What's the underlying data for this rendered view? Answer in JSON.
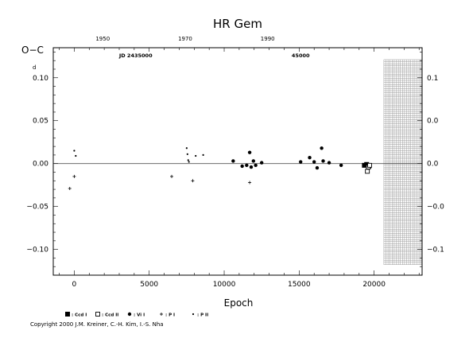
{
  "chart_data": {
    "type": "scatter",
    "title": "HR Gem",
    "ylabel": "O−C",
    "ylabel_unit": "d",
    "xlabel": "Epoch",
    "xlim": [
      -1400,
      23200
    ],
    "ylim": [
      -0.13,
      0.135
    ],
    "x_ticks": [
      {
        "value": 0,
        "label": "0"
      },
      {
        "value": 5000,
        "label": "5000"
      },
      {
        "value": 10000,
        "label": "10000"
      },
      {
        "value": 15000,
        "label": "15000"
      },
      {
        "value": 20000,
        "label": "20000"
      }
    ],
    "y_ticks": [
      {
        "value": 0.1,
        "label": "0.10"
      },
      {
        "value": 0.05,
        "label": "0.05"
      },
      {
        "value": 0.0,
        "label": "0.00"
      },
      {
        "value": -0.05,
        "label": "−0.05"
      },
      {
        "value": -0.1,
        "label": "−0.10"
      }
    ],
    "right_ticks": [
      {
        "value": 0.1,
        "label": "0.1"
      },
      {
        "value": 0.05,
        "label": "0.0"
      },
      {
        "value": 0.0,
        "label": "0.0"
      },
      {
        "value": -0.05,
        "label": "−0.0"
      },
      {
        "value": -0.1,
        "label": "−0.1"
      }
    ],
    "year_ticks": [
      {
        "epoch": 1900,
        "label": "1950"
      },
      {
        "epoch": 7400,
        "label": "1970"
      },
      {
        "epoch": 12900,
        "label": "1990"
      }
    ],
    "jd_labels": [
      {
        "epoch": 4100,
        "label": "JD 2435000"
      },
      {
        "epoch": 15100,
        "label": "45000"
      }
    ],
    "shaded_region": {
      "x_start": 20650,
      "x_end": 23200
    },
    "zero_line": true,
    "legend": [
      {
        "symbol": "filled-square",
        "label": ": Ccd I"
      },
      {
        "symbol": "open-square",
        "label": ": Ccd II"
      },
      {
        "symbol": "filled-circle",
        "label": ": Vi I"
      },
      {
        "symbol": "plus",
        "label": ": P I"
      },
      {
        "symbol": "dot",
        "label": ": P II"
      }
    ],
    "series": [
      {
        "symbol": "filled-square",
        "points": [
          [
            19350,
            -0.002
          ],
          [
            19500,
            -0.001
          ],
          [
            19650,
            -0.003
          ]
        ]
      },
      {
        "symbol": "open-square",
        "points": [
          [
            19550,
            -0.009
          ],
          [
            19620,
            -0.004
          ],
          [
            19700,
            -0.002
          ]
        ]
      },
      {
        "symbol": "filled-circle",
        "points": [
          [
            10600,
            0.003
          ],
          [
            11200,
            -0.003
          ],
          [
            11500,
            -0.002
          ],
          [
            11700,
            0.013
          ],
          [
            11800,
            -0.004
          ],
          [
            11950,
            0.003
          ],
          [
            12100,
            -0.002
          ],
          [
            12500,
            0.001
          ],
          [
            15100,
            0.002
          ],
          [
            15700,
            0.007
          ],
          [
            16000,
            0.002
          ],
          [
            16200,
            -0.005
          ],
          [
            16500,
            0.018
          ],
          [
            16600,
            0.003
          ],
          [
            17000,
            0.001
          ],
          [
            17800,
            -0.002
          ]
        ]
      },
      {
        "symbol": "plus",
        "points": [
          [
            -300,
            -0.029
          ],
          [
            0,
            -0.015
          ],
          [
            6500,
            -0.015
          ],
          [
            7900,
            -0.02
          ],
          [
            11700,
            -0.022
          ]
        ]
      },
      {
        "symbol": "dot",
        "points": [
          [
            0,
            0.015
          ],
          [
            100,
            0.009
          ],
          [
            7500,
            0.018
          ],
          [
            7550,
            0.011
          ],
          [
            7600,
            0.004
          ],
          [
            7650,
            0.002
          ],
          [
            8100,
            0.009
          ],
          [
            8600,
            0.01
          ]
        ]
      }
    ]
  },
  "footer": {
    "copyright": "Copyright 2000 J.M. Kreiner, C.-H. Kim, I.-S. Nha"
  }
}
